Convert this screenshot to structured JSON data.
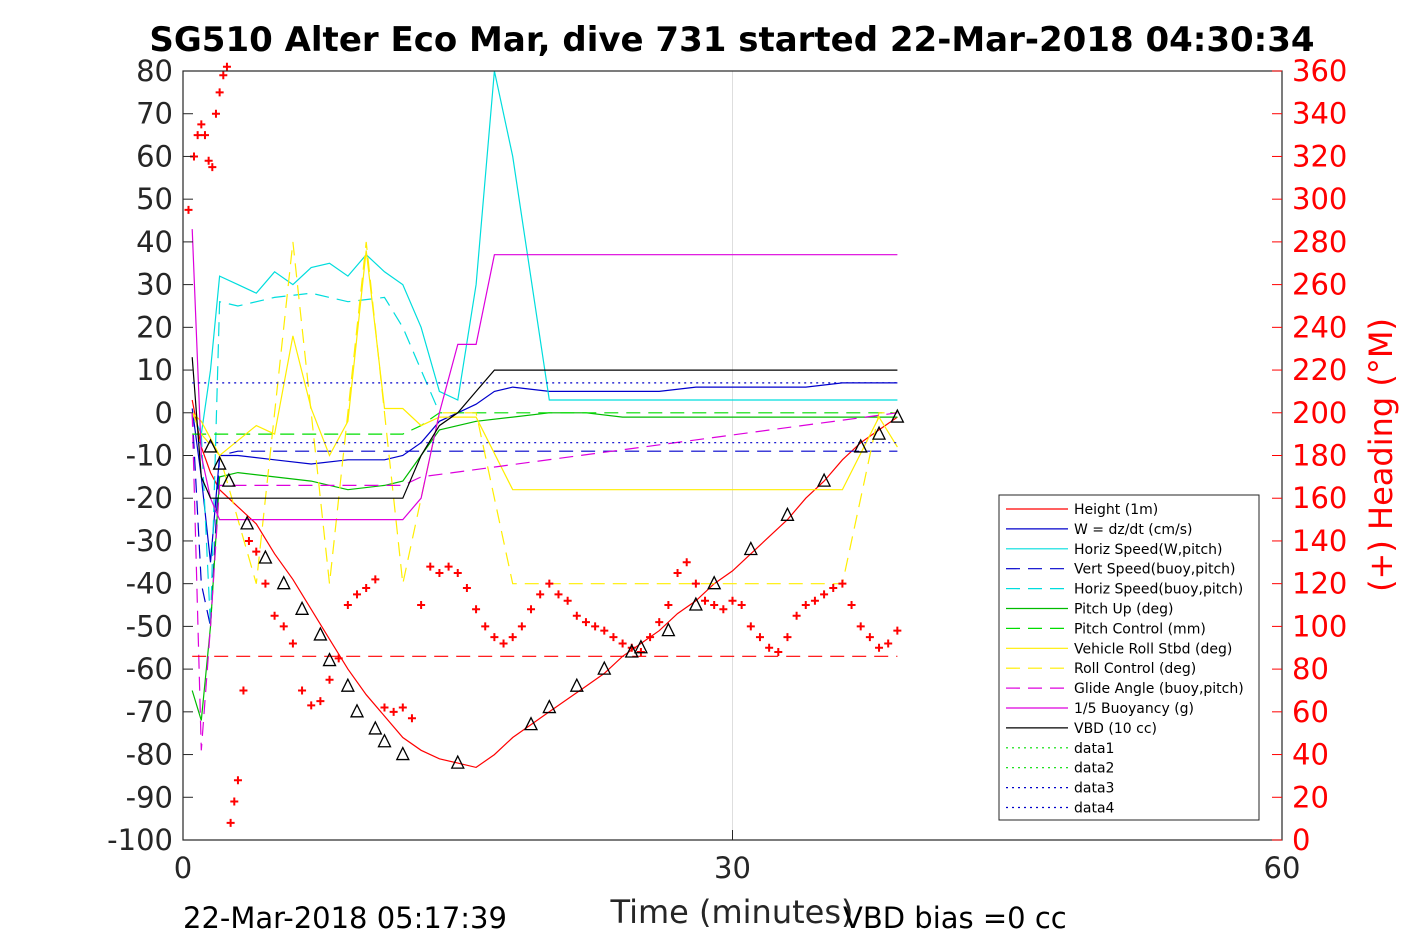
{
  "chart_data": {
    "type": "line",
    "title": "SG510 Alter Eco Mar, dive 731 started 22-Mar-2018 04:30:34",
    "xlabel": "Time (minutes)",
    "ylabel_right": "(+) Heading (°M)",
    "xlim": [
      0,
      60
    ],
    "ylim": [
      -100,
      80
    ],
    "ylim_right": [
      0,
      360
    ],
    "x_ticks": [
      "0",
      "30",
      "60"
    ],
    "y_ticks": [
      "80",
      "70",
      "60",
      "50",
      "40",
      "30",
      "20",
      "10",
      "0",
      "-10",
      "-20",
      "-30",
      "-40",
      "-50",
      "-60",
      "-70",
      "-80",
      "-90",
      "-100"
    ],
    "y_ticks_right": [
      "360",
      "340",
      "320",
      "300",
      "280",
      "260",
      "240",
      "220",
      "200",
      "180",
      "160",
      "140",
      "120",
      "100",
      "80",
      "60",
      "40",
      "20",
      "0"
    ],
    "grid": "x-major",
    "legend_position": "bottom-right",
    "footer_left": "22-Mar-2018 05:17:39",
    "footer_right": "VBD bias =0 cc",
    "series": [
      {
        "name": "Height (1m)",
        "color": "#ff0000",
        "style": "solid",
        "x": [
          0.5,
          1,
          1.5,
          2,
          3,
          4,
          5,
          6,
          7,
          8,
          9,
          10,
          11,
          12,
          13,
          14,
          15,
          16,
          17,
          18,
          19,
          20,
          21,
          22,
          23,
          24,
          25,
          26,
          27,
          28,
          29,
          30,
          31,
          32,
          33,
          34,
          35,
          36,
          37,
          38,
          39
        ],
        "y": [
          3,
          -8,
          -14,
          -18,
          -22,
          -26,
          -33,
          -39,
          -46,
          -53,
          -60,
          -66,
          -71,
          -76,
          -79,
          -81,
          -82,
          -83,
          -80,
          -76,
          -73,
          -70,
          -67,
          -64,
          -61,
          -57,
          -54,
          -51,
          -47,
          -44,
          -40,
          -37,
          -33,
          -29,
          -25,
          -20,
          -16,
          -11,
          -7,
          -4,
          -1
        ]
      },
      {
        "name": "W = dz/dt (cm/s)",
        "color": "#0000cc",
        "style": "solid",
        "x": [
          0.5,
          1,
          1.5,
          2,
          3,
          5,
          7,
          9,
          11,
          12,
          13,
          14,
          15,
          16,
          17,
          18,
          20,
          22,
          24,
          26,
          28,
          30,
          32,
          34,
          36,
          38,
          39
        ],
        "y": [
          1,
          -15,
          -35,
          -10,
          -10,
          -11,
          -12,
          -11,
          -11,
          -10,
          -7,
          -2,
          0,
          2,
          5,
          6,
          5,
          5,
          5,
          5,
          6,
          6,
          6,
          6,
          7,
          7,
          7
        ]
      },
      {
        "name": "Horiz Speed(W,pitch)",
        "color": "#00dddd",
        "style": "solid",
        "x": [
          0.5,
          1,
          1.5,
          2,
          3,
          4,
          5,
          6,
          7,
          8,
          9,
          10,
          11,
          12,
          13,
          14,
          15,
          16,
          17,
          18,
          20,
          22,
          24,
          26,
          28,
          30,
          32,
          34,
          36,
          38,
          39
        ],
        "y": [
          0,
          -5,
          10,
          32,
          30,
          28,
          33,
          30,
          34,
          35,
          32,
          37,
          33,
          30,
          20,
          5,
          3,
          30,
          80,
          60,
          3,
          3,
          3,
          3,
          3,
          3,
          3,
          3,
          3,
          3,
          3
        ]
      },
      {
        "name": "Vert Speed(buoy,pitch)",
        "color": "#0000cc",
        "style": "dashed",
        "x": [
          0.5,
          1,
          1.5,
          2,
          3,
          5,
          7,
          9,
          11,
          12,
          13,
          39
        ],
        "y": [
          0,
          -40,
          -50,
          -10,
          -9,
          -9,
          -9,
          -9,
          -9,
          -9,
          -9,
          -9
        ]
      },
      {
        "name": "Horiz Speed(buoy,pitch)",
        "color": "#00dddd",
        "style": "dashed",
        "x": [
          0.5,
          1,
          1.5,
          2,
          3,
          5,
          7,
          9,
          11,
          12,
          13,
          14
        ],
        "y": [
          0,
          -5,
          -50,
          26,
          25,
          27,
          28,
          26,
          27,
          20,
          10,
          0
        ]
      },
      {
        "name": "Pitch Up (deg)",
        "color": "#00bb00",
        "style": "solid",
        "x": [
          0.5,
          1,
          1.5,
          2,
          3,
          5,
          7,
          9,
          11,
          12,
          13,
          14,
          16,
          18,
          20,
          22,
          24,
          26,
          28,
          30,
          32,
          34,
          36,
          38,
          39
        ],
        "y": [
          -65,
          -72,
          -50,
          -15,
          -14,
          -15,
          -16,
          -18,
          -17,
          -16,
          -10,
          -4,
          -2,
          -1,
          0,
          0,
          -1,
          -1,
          -1,
          -1,
          -1,
          -1,
          -1,
          -1,
          -1
        ]
      },
      {
        "name": "Pitch Control (mm)",
        "color": "#00dd00",
        "style": "dashed",
        "x": [
          0.5,
          1,
          2,
          4,
          6,
          8,
          10,
          12,
          13,
          14,
          16,
          39
        ],
        "y": [
          -5,
          -5,
          -5,
          -5,
          -5,
          -5,
          -5,
          -5,
          -3,
          0,
          0,
          0
        ]
      },
      {
        "name": "Vehicle Roll Stbd (deg)",
        "color": "#ffee00",
        "style": "solid",
        "x": [
          0.5,
          1,
          2,
          4,
          5,
          6,
          7,
          8,
          9,
          10,
          11,
          12,
          13,
          14,
          16,
          18,
          20,
          22,
          24,
          26,
          28,
          30,
          32,
          34,
          36,
          38,
          39
        ],
        "y": [
          0,
          -2,
          -10,
          -3,
          -5,
          18,
          1,
          -10,
          -2,
          38,
          1,
          1,
          -3,
          -1,
          -1,
          -18,
          -18,
          -18,
          -18,
          -18,
          -18,
          -18,
          -18,
          -18,
          -18,
          -1,
          -8
        ]
      },
      {
        "name": "Roll Control (deg)",
        "color": "#ffee00",
        "style": "dashed",
        "x": [
          0.5,
          1,
          2,
          4,
          6,
          8,
          10,
          12,
          14,
          16,
          18,
          20,
          22,
          24,
          26,
          28,
          30,
          32,
          34,
          36,
          38,
          39
        ],
        "y": [
          0,
          -5,
          -10,
          -40,
          40,
          -40,
          40,
          -40,
          0,
          0,
          -40,
          -40,
          -40,
          -40,
          -40,
          -40,
          -40,
          -40,
          -40,
          -40,
          0,
          0
        ]
      },
      {
        "name": "Glide Angle (buoy,pitch)",
        "color": "#dd00dd",
        "style": "dashed",
        "x": [
          0.5,
          1,
          1.5,
          2,
          3,
          5,
          7,
          9,
          11,
          12,
          13,
          39
        ],
        "y": [
          0,
          -79,
          -50,
          -17,
          -17,
          -17,
          -17,
          -17,
          -17,
          -17,
          -15,
          0
        ]
      },
      {
        "name": "1/5 Buoyancy (g)",
        "color": "#dd00dd",
        "style": "solid",
        "x": [
          0.5,
          1,
          1.5,
          2,
          4,
          6,
          8,
          10,
          12,
          13,
          14,
          15,
          16,
          17,
          20,
          25,
          30,
          35,
          39
        ],
        "y": [
          43,
          -10,
          -20,
          -25,
          -25,
          -25,
          -25,
          -25,
          -25,
          -20,
          0,
          16,
          16,
          37,
          37,
          37,
          37,
          37,
          37
        ]
      },
      {
        "name": "VBD (10 cc)",
        "color": "#000000",
        "style": "solid",
        "x": [
          0.5,
          1,
          1.5,
          2,
          4,
          6,
          8,
          10,
          12,
          13,
          14,
          15,
          16,
          17,
          20,
          25,
          30,
          35,
          39
        ],
        "y": [
          13,
          -15,
          -20,
          -20,
          -20,
          -20,
          -20,
          -20,
          -20,
          -10,
          -3,
          0,
          5,
          10,
          10,
          10,
          10,
          10,
          10
        ]
      },
      {
        "name": "data1",
        "color": "#00dd00",
        "style": "dotted",
        "x": [],
        "y": []
      },
      {
        "name": "data2",
        "color": "#00dd00",
        "style": "dotted",
        "x": [],
        "y": []
      },
      {
        "name": "data3",
        "color": "#0000cc",
        "style": "dotted",
        "x": [
          0.5,
          39
        ],
        "y": [
          7,
          7
        ]
      },
      {
        "name": "data4",
        "color": "#0000cc",
        "style": "dotted",
        "x": [
          0.5,
          39
        ],
        "y": [
          -7,
          -7
        ]
      }
    ],
    "heading_target": {
      "color": "#ff0000",
      "style": "dashed",
      "x": [
        0.5,
        39
      ],
      "y_right": [
        86,
        86
      ]
    },
    "heading_points": {
      "color": "#ff0000",
      "marker": "+",
      "x": [
        0.3,
        0.6,
        0.8,
        1.0,
        1.2,
        1.4,
        1.6,
        1.8,
        2.0,
        2.2,
        2.4,
        2.6,
        2.8,
        3.0,
        3.3,
        3.6,
        4.0,
        4.5,
        5.0,
        5.5,
        6.0,
        6.5,
        7.0,
        7.5,
        8.0,
        8.5,
        9.0,
        9.5,
        10.0,
        10.5,
        11.0,
        11.5,
        12.0,
        12.5,
        13.0,
        13.5,
        14.0,
        14.5,
        15.0,
        15.5,
        16.0,
        16.5,
        17.0,
        17.5,
        18.0,
        18.5,
        19.0,
        19.5,
        20.0,
        20.5,
        21.0,
        21.5,
        22.0,
        22.5,
        23.0,
        23.5,
        24.0,
        24.5,
        25.0,
        25.5,
        26.0,
        26.5,
        27.0,
        27.5,
        28.0,
        28.5,
        29.0,
        29.5,
        30.0,
        30.5,
        31.0,
        31.5,
        32.0,
        32.5,
        33.0,
        33.5,
        34.0,
        34.5,
        35.0,
        35.5,
        36.0,
        36.5,
        37.0,
        37.5,
        38.0,
        38.5,
        39.0
      ],
      "y": [
        295,
        320,
        330,
        335,
        330,
        318,
        315,
        340,
        350,
        358,
        362,
        8,
        18,
        28,
        70,
        140,
        135,
        120,
        105,
        100,
        92,
        70,
        63,
        65,
        75,
        85,
        110,
        115,
        118,
        122,
        62,
        60,
        62,
        57,
        110,
        128,
        125,
        128,
        125,
        118,
        108,
        100,
        95,
        92,
        95,
        100,
        108,
        115,
        120,
        115,
        112,
        105,
        102,
        100,
        98,
        95,
        92,
        90,
        88,
        95,
        102,
        110,
        125,
        130,
        120,
        112,
        110,
        108,
        112,
        110,
        100,
        95,
        90,
        88,
        95,
        105,
        110,
        112,
        115,
        118,
        120,
        110,
        100,
        95,
        90,
        92,
        98
      ]
    },
    "marker_points": {
      "color": "#000000",
      "marker": "triangle",
      "x": [
        1.5,
        2.0,
        2.5,
        3.5,
        4.5,
        5.5,
        6.5,
        7.5,
        8.0,
        9.0,
        9.5,
        10.5,
        11.0,
        12.0,
        15.0,
        19.0,
        20.0,
        21.5,
        23.0,
        24.5,
        25.0,
        26.5,
        28.0,
        29.0,
        31.0,
        33.0,
        35.0,
        37.0,
        38.0,
        39.0
      ],
      "y": [
        -8,
        -12,
        -16,
        -26,
        -34,
        -40,
        -46,
        -52,
        -58,
        -64,
        -70,
        -74,
        -77,
        -80,
        -82,
        -73,
        -69,
        -64,
        -60,
        -56,
        -55,
        -51,
        -45,
        -40,
        -32,
        -24,
        -16,
        -8,
        -5,
        -1
      ]
    }
  }
}
